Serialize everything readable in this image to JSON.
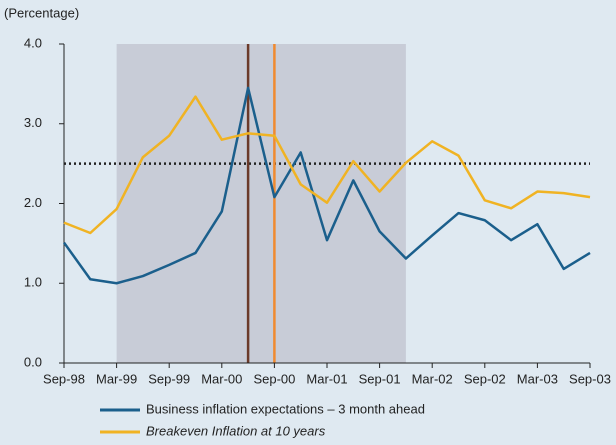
{
  "chart_data": {
    "type": "line",
    "ylabel": "(Percentage)",
    "categories": [
      "Sep-98",
      null,
      "Mar-99",
      null,
      "Sep-99",
      null,
      "Mar-00",
      null,
      "Sep-00",
      null,
      "Mar-01",
      null,
      "Sep-01",
      null,
      "Mar-02",
      null,
      "Sep-02",
      null,
      "Mar-03",
      null,
      "Sep-03"
    ],
    "series": [
      {
        "name": "Business inflation expectations – 3 month ahead",
        "color": "#1b5f8c",
        "values": [
          1.51,
          1.05,
          1.0,
          1.09,
          1.23,
          1.38,
          1.9,
          3.45,
          2.08,
          2.64,
          1.54,
          2.29,
          1.65,
          1.31,
          1.6,
          1.88,
          1.79,
          1.54,
          1.74,
          1.18,
          1.38
        ]
      },
      {
        "name": "Breakeven Inflation at 10 years",
        "color": "#f0b323",
        "italic": true,
        "values": [
          1.76,
          1.63,
          1.93,
          2.58,
          2.85,
          3.34,
          2.8,
          2.88,
          2.85,
          2.24,
          2.01,
          2.53,
          2.15,
          2.51,
          2.78,
          2.6,
          2.04,
          1.94,
          2.15,
          2.13,
          2.08
        ]
      }
    ],
    "ylim": [
      0,
      4
    ],
    "yticks": [
      {
        "value": 0,
        "label": "0.0"
      },
      {
        "value": 1,
        "label": "1.0"
      },
      {
        "value": 2,
        "label": "2.0"
      },
      {
        "value": 3,
        "label": "3.0"
      },
      {
        "value": 4,
        "label": "4.0"
      }
    ],
    "shade_x": [
      2,
      13
    ],
    "shade_color": "#c8ccd7",
    "vlines": [
      {
        "x": 7,
        "color": "#6b3a2a"
      },
      {
        "x": 8,
        "color": "#f08a30"
      }
    ],
    "reference_line": {
      "value": 2.5,
      "style": "dotted",
      "color": "#222222"
    },
    "legend": "bottom"
  }
}
